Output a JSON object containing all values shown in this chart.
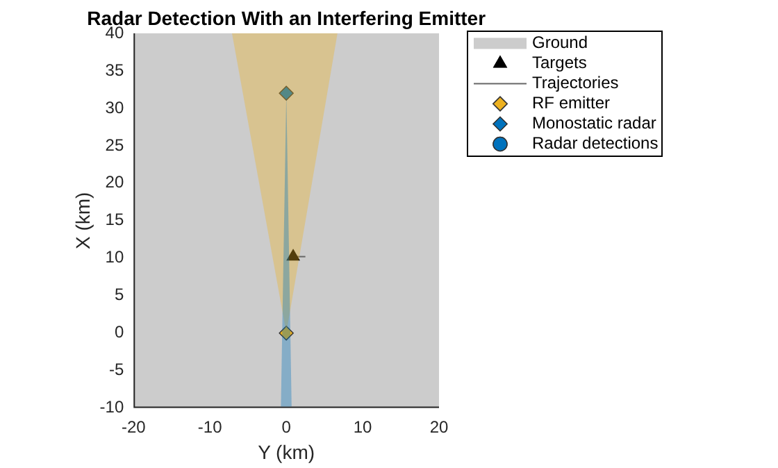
{
  "chart_data": {
    "type": "scatter",
    "title": "Radar Detection With an Interfering Emitter",
    "xlabel": "Y (km)",
    "ylabel": "X (km)",
    "xlim": [
      -20,
      20
    ],
    "ylim": [
      -10,
      40
    ],
    "xticks": [
      -20,
      -10,
      0,
      10,
      20
    ],
    "yticks": [
      -10,
      -5,
      0,
      5,
      10,
      15,
      20,
      25,
      30,
      35,
      40
    ],
    "legend": "top right",
    "annotations": [
      "Ground"
    ],
    "series": [
      {
        "name": "Targets",
        "color": "#000000",
        "marker": "triangle",
        "x": [
          0.9
        ],
        "values": [
          10.2
        ]
      },
      {
        "name": "Trajectories",
        "type": "line",
        "color": "#666666",
        "marker": "none",
        "x": [
          0.9,
          2.5
        ],
        "values": [
          10.2,
          10.2
        ]
      },
      {
        "name": "RF emitter",
        "color": "#edb120",
        "marker": "diamond",
        "x": [
          0
        ],
        "values": [
          0
        ]
      },
      {
        "name": "Monostatic radar",
        "color": "#0072bd",
        "marker": "diamond",
        "x": [
          0
        ],
        "values": [
          32
        ]
      },
      {
        "name": "Radar detections",
        "color": "#0072bd",
        "marker": "circle"
      }
    ]
  }
}
